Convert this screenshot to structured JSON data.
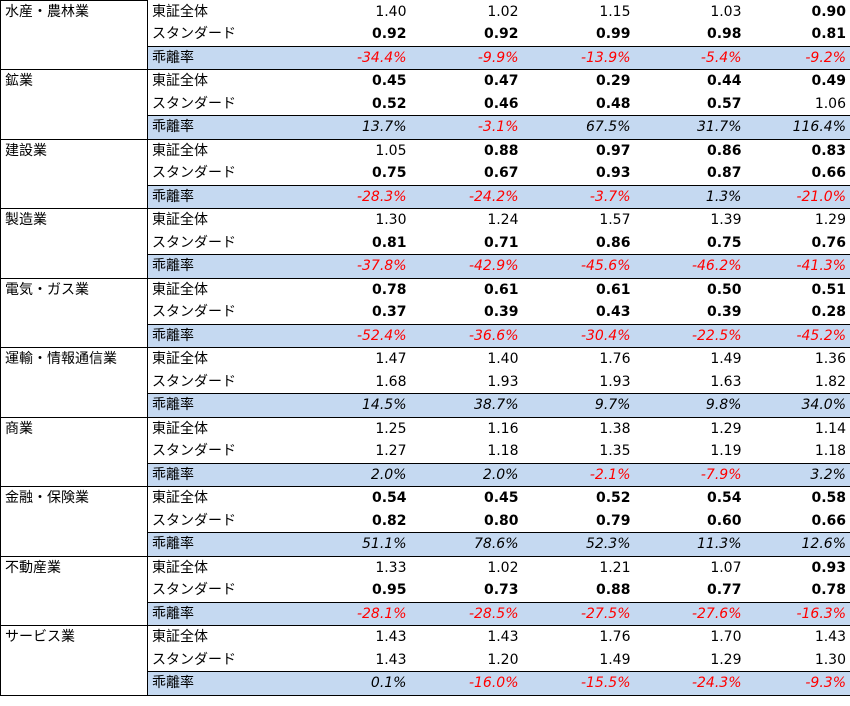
{
  "table": {
    "groups": [
      {
        "industry": "水産・農林業",
        "rows": [
          {
            "label": "東証全体",
            "values": [
              "1.40",
              "1.02",
              "1.15",
              "1.03",
              "0.90"
            ]
          },
          {
            "label": "スタンダード",
            "values": [
              "0.92",
              "0.92",
              "0.99",
              "0.98",
              "0.81"
            ]
          },
          {
            "label": "乖離率",
            "values": [
              "-34.4%",
              "-9.9%",
              "-13.9%",
              "-5.4%",
              "-9.2%"
            ]
          }
        ]
      },
      {
        "industry": "鉱業",
        "rows": [
          {
            "label": "東証全体",
            "values": [
              "0.45",
              "0.47",
              "0.29",
              "0.44",
              "0.49"
            ]
          },
          {
            "label": "スタンダード",
            "values": [
              "0.52",
              "0.46",
              "0.48",
              "0.57",
              "1.06"
            ]
          },
          {
            "label": "乖離率",
            "values": [
              "13.7%",
              "-3.1%",
              "67.5%",
              "31.7%",
              "116.4%"
            ]
          }
        ]
      },
      {
        "industry": "建設業",
        "rows": [
          {
            "label": "東証全体",
            "values": [
              "1.05",
              "0.88",
              "0.97",
              "0.86",
              "0.83"
            ]
          },
          {
            "label": "スタンダード",
            "values": [
              "0.75",
              "0.67",
              "0.93",
              "0.87",
              "0.66"
            ]
          },
          {
            "label": "乖離率",
            "values": [
              "-28.3%",
              "-24.2%",
              "-3.7%",
              "1.3%",
              "-21.0%"
            ]
          }
        ]
      },
      {
        "industry": "製造業",
        "rows": [
          {
            "label": "東証全体",
            "values": [
              "1.30",
              "1.24",
              "1.57",
              "1.39",
              "1.29"
            ]
          },
          {
            "label": "スタンダード",
            "values": [
              "0.81",
              "0.71",
              "0.86",
              "0.75",
              "0.76"
            ]
          },
          {
            "label": "乖離率",
            "values": [
              "-37.8%",
              "-42.9%",
              "-45.6%",
              "-46.2%",
              "-41.3%"
            ]
          }
        ]
      },
      {
        "industry": "電気・ガス業",
        "rows": [
          {
            "label": "東証全体",
            "values": [
              "0.78",
              "0.61",
              "0.61",
              "0.50",
              "0.51"
            ]
          },
          {
            "label": "スタンダード",
            "values": [
              "0.37",
              "0.39",
              "0.43",
              "0.39",
              "0.28"
            ]
          },
          {
            "label": "乖離率",
            "values": [
              "-52.4%",
              "-36.6%",
              "-30.4%",
              "-22.5%",
              "-45.2%"
            ]
          }
        ]
      },
      {
        "industry": "運輸・情報通信業",
        "rows": [
          {
            "label": "東証全体",
            "values": [
              "1.47",
              "1.40",
              "1.76",
              "1.49",
              "1.36"
            ]
          },
          {
            "label": "スタンダード",
            "values": [
              "1.68",
              "1.93",
              "1.93",
              "1.63",
              "1.82"
            ]
          },
          {
            "label": "乖離率",
            "values": [
              "14.5%",
              "38.7%",
              "9.7%",
              "9.8%",
              "34.0%"
            ]
          }
        ]
      },
      {
        "industry": "商業",
        "rows": [
          {
            "label": "東証全体",
            "values": [
              "1.25",
              "1.16",
              "1.38",
              "1.29",
              "1.14"
            ]
          },
          {
            "label": "スタンダード",
            "values": [
              "1.27",
              "1.18",
              "1.35",
              "1.19",
              "1.18"
            ]
          },
          {
            "label": "乖離率",
            "values": [
              "2.0%",
              "2.0%",
              "-2.1%",
              "-7.9%",
              "3.2%"
            ]
          }
        ]
      },
      {
        "industry": "金融・保険業",
        "rows": [
          {
            "label": "東証全体",
            "values": [
              "0.54",
              "0.45",
              "0.52",
              "0.54",
              "0.58"
            ]
          },
          {
            "label": "スタンダード",
            "values": [
              "0.82",
              "0.80",
              "0.79",
              "0.60",
              "0.66"
            ]
          },
          {
            "label": "乖離率",
            "values": [
              "51.1%",
              "78.6%",
              "52.3%",
              "11.3%",
              "12.6%"
            ]
          }
        ]
      },
      {
        "industry": "不動産業",
        "rows": [
          {
            "label": "東証全体",
            "values": [
              "1.33",
              "1.02",
              "1.21",
              "1.07",
              "0.93"
            ]
          },
          {
            "label": "スタンダード",
            "values": [
              "0.95",
              "0.73",
              "0.88",
              "0.77",
              "0.78"
            ]
          },
          {
            "label": "乖離率",
            "values": [
              "-28.1%",
              "-28.5%",
              "-27.5%",
              "-27.6%",
              "-16.3%"
            ]
          }
        ]
      },
      {
        "industry": "サービス業",
        "rows": [
          {
            "label": "東証全体",
            "values": [
              "1.43",
              "1.43",
              "1.76",
              "1.70",
              "1.43"
            ]
          },
          {
            "label": "スタンダード",
            "values": [
              "1.43",
              "1.20",
              "1.49",
              "1.29",
              "1.30"
            ]
          },
          {
            "label": "乖離率",
            "values": [
              "0.1%",
              "-16.0%",
              "-15.5%",
              "-24.3%",
              "-9.3%"
            ]
          }
        ]
      }
    ]
  }
}
